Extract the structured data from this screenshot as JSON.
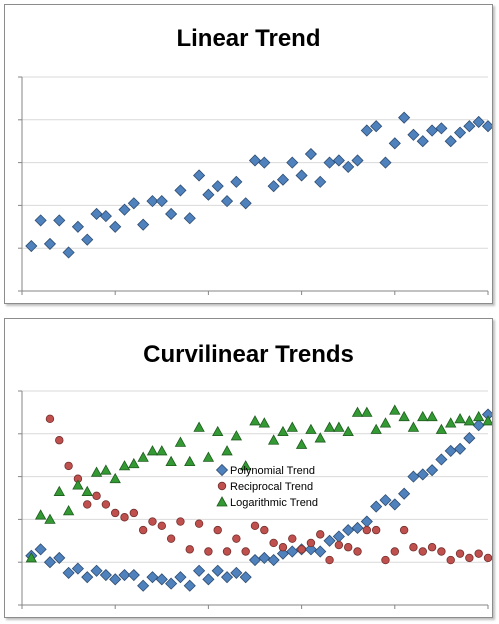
{
  "chart_data": [
    {
      "type": "scatter",
      "title": "Linear Trend",
      "xlabel": "",
      "ylabel": "",
      "xlim": [
        0,
        50
      ],
      "ylim": [
        0,
        5
      ],
      "grid": "horizontal",
      "legend": "none",
      "series": [
        {
          "marker": "diamond",
          "color": "#4f81bd",
          "x": [
            1,
            2,
            3,
            4,
            5,
            6,
            7,
            8,
            9,
            10,
            11,
            12,
            13,
            14,
            15,
            16,
            17,
            18,
            19,
            20,
            21,
            22,
            23,
            24,
            25,
            26,
            27,
            28,
            29,
            30,
            31,
            32,
            33,
            34,
            35,
            36,
            37,
            38,
            39,
            40,
            41,
            42,
            43,
            44,
            45,
            46,
            47,
            48,
            49,
            50
          ],
          "y": [
            1.05,
            1.65,
            1.1,
            1.65,
            0.9,
            1.5,
            1.2,
            1.8,
            1.75,
            1.5,
            1.9,
            2.05,
            1.55,
            2.1,
            2.1,
            1.8,
            2.35,
            1.7,
            2.7,
            2.25,
            2.45,
            2.1,
            2.55,
            2.05,
            3.05,
            3.0,
            2.45,
            2.6,
            3.0,
            2.7,
            3.2,
            2.55,
            3.0,
            3.05,
            2.9,
            3.05,
            3.75,
            3.85,
            3.0,
            3.45,
            4.05,
            3.65,
            3.5,
            3.75,
            3.8,
            3.5,
            3.7,
            3.85,
            3.95,
            3.85
          ]
        }
      ]
    },
    {
      "type": "scatter",
      "title": "Curvilinear Trends",
      "xlabel": "",
      "ylabel": "",
      "xlim": [
        0,
        50
      ],
      "ylim": [
        0,
        5
      ],
      "grid": "horizontal",
      "legend": "center",
      "series": [
        {
          "name": "Polynomial Trend",
          "marker": "diamond",
          "color": "#4f81bd",
          "x": [
            1,
            2,
            3,
            4,
            5,
            6,
            7,
            8,
            9,
            10,
            11,
            12,
            13,
            14,
            15,
            16,
            17,
            18,
            19,
            20,
            21,
            22,
            23,
            24,
            25,
            26,
            27,
            28,
            29,
            30,
            31,
            32,
            33,
            34,
            35,
            36,
            37,
            38,
            39,
            40,
            41,
            42,
            43,
            44,
            45,
            46,
            47,
            48,
            49,
            50
          ],
          "y": [
            1.15,
            1.3,
            1.0,
            1.1,
            0.75,
            0.85,
            0.65,
            0.8,
            0.7,
            0.6,
            0.7,
            0.7,
            0.45,
            0.65,
            0.6,
            0.5,
            0.65,
            0.45,
            0.8,
            0.6,
            0.8,
            0.65,
            0.75,
            0.65,
            1.05,
            1.1,
            1.05,
            1.2,
            1.25,
            1.3,
            1.3,
            1.25,
            1.5,
            1.6,
            1.75,
            1.8,
            1.95,
            2.3,
            2.45,
            2.35,
            2.6,
            3.0,
            3.05,
            3.15,
            3.4,
            3.6,
            3.65,
            3.9,
            4.2,
            4.45
          ]
        },
        {
          "name": "Reciprocal Trend",
          "marker": "circle",
          "color": "#c0504d",
          "x": [
            3,
            4,
            5,
            6,
            7,
            8,
            9,
            10,
            11,
            12,
            13,
            14,
            15,
            16,
            17,
            18,
            19,
            20,
            21,
            22,
            23,
            24,
            25,
            26,
            27,
            28,
            29,
            30,
            31,
            32,
            33,
            34,
            35,
            36,
            37,
            38,
            39,
            40,
            41,
            42,
            43,
            44,
            45,
            46,
            47,
            48,
            49,
            50
          ],
          "y": [
            4.35,
            3.85,
            3.25,
            2.95,
            2.35,
            2.55,
            2.35,
            2.15,
            2.05,
            2.15,
            1.75,
            1.95,
            1.85,
            1.55,
            1.95,
            1.3,
            1.9,
            1.25,
            1.75,
            1.25,
            1.55,
            1.25,
            1.85,
            1.75,
            1.45,
            1.35,
            1.55,
            1.3,
            1.45,
            1.65,
            1.05,
            1.4,
            1.35,
            1.25,
            1.75,
            1.75,
            1.05,
            1.25,
            1.75,
            1.35,
            1.25,
            1.35,
            1.25,
            1.05,
            1.2,
            1.1,
            1.2,
            1.1
          ]
        },
        {
          "name": "Logarithmic Trend",
          "marker": "triangle",
          "color": "#339933",
          "x": [
            1,
            2,
            3,
            4,
            5,
            6,
            7,
            8,
            9,
            10,
            11,
            12,
            13,
            14,
            15,
            16,
            17,
            18,
            19,
            20,
            21,
            22,
            23,
            24,
            25,
            26,
            27,
            28,
            29,
            30,
            31,
            32,
            33,
            34,
            35,
            36,
            37,
            38,
            39,
            40,
            41,
            42,
            43,
            44,
            45,
            46,
            47,
            48,
            49,
            50
          ],
          "y": [
            1.1,
            2.1,
            2.0,
            2.65,
            2.2,
            2.8,
            2.65,
            3.1,
            3.15,
            2.95,
            3.25,
            3.3,
            3.45,
            3.6,
            3.6,
            3.35,
            3.8,
            3.35,
            4.15,
            3.45,
            4.05,
            3.6,
            3.95,
            3.25,
            4.3,
            4.25,
            3.85,
            4.05,
            4.15,
            3.75,
            4.1,
            3.9,
            4.15,
            4.15,
            4.05,
            4.5,
            4.5,
            4.1,
            4.25,
            4.55,
            4.4,
            4.15,
            4.4,
            4.4,
            4.1,
            4.25,
            4.35,
            4.3,
            4.4,
            4.3
          ]
        }
      ]
    }
  ]
}
